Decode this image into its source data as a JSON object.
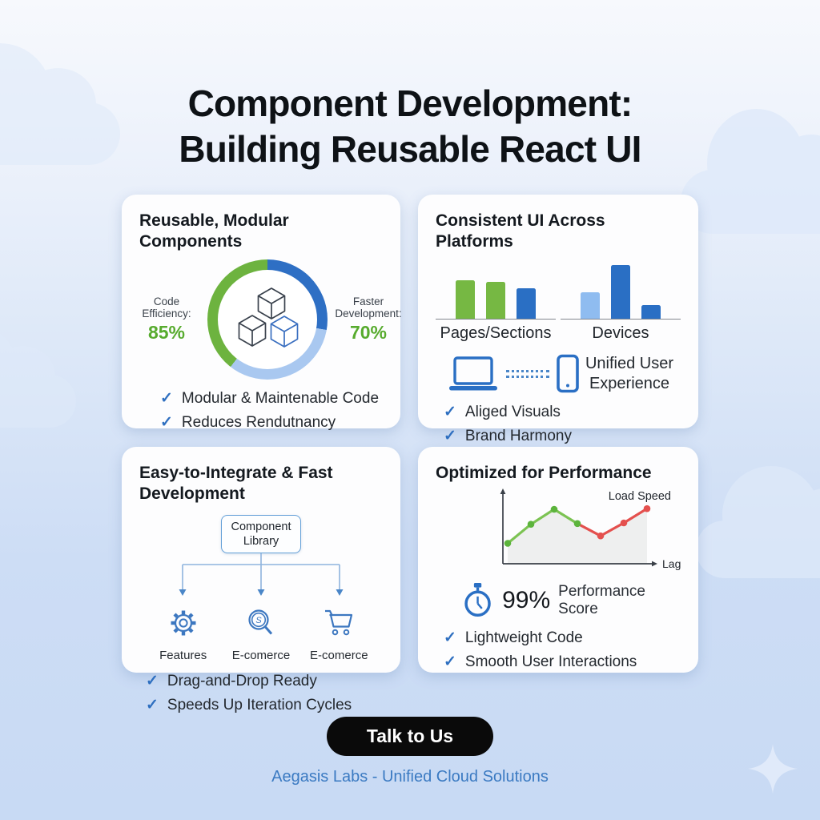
{
  "page": {
    "title_line1": "Component Development:",
    "title_line2": "Building Reusable React UI",
    "cta_label": "Talk to Us",
    "footer_caption": "Aegasis Labs - Unified Cloud Solutions"
  },
  "glyphs": {
    "check": "✓"
  },
  "colors": {
    "green": "#6db33f",
    "blue": "#2a6fc4",
    "light_blue": "#a9c8f0",
    "check_blue": "#2e6fc0",
    "green_value_text": "#57ab2e",
    "footer_blue": "#3b7ac2",
    "cta_bg": "#0a0a0a",
    "line_green": "#7cc353",
    "line_red": "#e4504e"
  },
  "cards": {
    "modular": {
      "title": "Reusable, Modular Components",
      "metric_left_label": "Code Efficiency:",
      "metric_left_value": "85%",
      "metric_right_label": "Faster Development:",
      "metric_right_value": "70%",
      "checks": [
        "Modular & Maintenable Code",
        "Reduces Rendutnancy"
      ]
    },
    "consistent": {
      "title": "Consistent UI Across Platforms",
      "chart_left_label": "Pages/Sections",
      "chart_right_label": "Devices",
      "caption": "Unified User Experience",
      "checks": [
        "Aliged Visuals",
        "Brand Harmony"
      ]
    },
    "integrate": {
      "title": "Easy-to-Integrate & Fast Development",
      "root_box_label": "Component Library",
      "leaf_labels": [
        "Features",
        "E-comerce",
        "E-comerce"
      ],
      "checks": [
        "Drag-and-Drop Ready",
        "Speeds Up Iteration Cycles"
      ]
    },
    "performance": {
      "title": "Optimized for Performance",
      "annotation_top": "Load Speed",
      "annotation_axis": "Lag",
      "score_value": "99%",
      "score_label": "Performance Score",
      "checks": [
        "Lightweight Code",
        "Smooth User Interactions"
      ]
    }
  },
  "chart_data": [
    {
      "type": "pie",
      "subtype": "donut-ring",
      "title": "Reusable, Modular Components ring",
      "segments": [
        {
          "name": "dark-blue-arc",
          "color": "#2e6fc4",
          "start_deg": 0,
          "end_deg": 100
        },
        {
          "name": "light-blue-arc",
          "color": "#a9c8f0",
          "start_deg": 100,
          "end_deg": 218
        },
        {
          "name": "green-arc",
          "color": "#6db33f",
          "start_deg": 218,
          "end_deg": 360
        }
      ],
      "metrics": [
        {
          "label": "Code Efficiency:",
          "value": 85
        },
        {
          "label": "Faster Development:",
          "value": 70
        }
      ]
    },
    {
      "type": "bar",
      "title": "Pages/Sections",
      "values": [
        48,
        46,
        38
      ],
      "colors": [
        "#76b843",
        "#76b843",
        "#2a6fc4"
      ],
      "unit": "relative-height-px",
      "axis_labels": false
    },
    {
      "type": "bar",
      "title": "Devices",
      "values": [
        33,
        67,
        17
      ],
      "colors": [
        "#8fbcf0",
        "#2a6fc4",
        "#2a6fc4"
      ],
      "unit": "relative-height-px",
      "axis_labels": false
    },
    {
      "type": "line",
      "title": "Performance: Load Speed vs Lag",
      "annotations": {
        "top_right": "Load Speed",
        "axis_end": "Lag"
      },
      "x": [
        0,
        1,
        2,
        3,
        4,
        5,
        6
      ],
      "y": [
        30,
        58,
        80,
        59,
        41,
        60,
        81
      ],
      "point_colors": [
        "#5cb43c",
        "#5cb43c",
        "#5cb43c",
        "#5cb43c",
        "#e4504e",
        "#e4504e",
        "#e4504e"
      ],
      "line_segments": [
        {
          "from": 0,
          "to": 3,
          "color": "#7cc353"
        },
        {
          "from": 3,
          "to": 6,
          "color": "#e4504e"
        }
      ],
      "area_fill": "#ebecec",
      "grid": false
    }
  ]
}
